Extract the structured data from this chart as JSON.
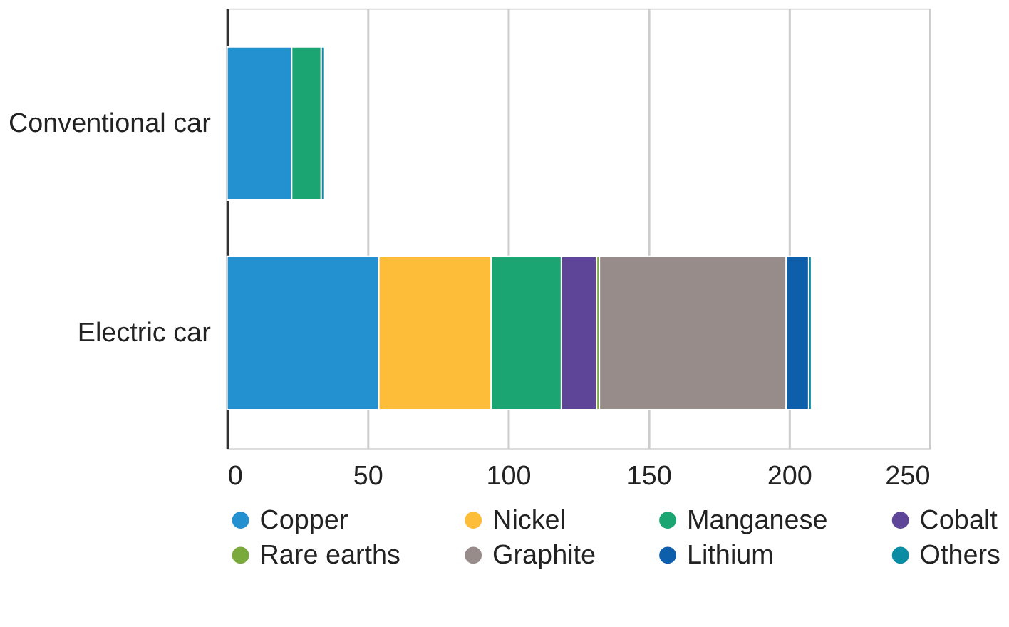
{
  "chart_data": {
    "type": "bar",
    "orientation": "horizontal",
    "stacked": true,
    "categories": [
      "Conventional car",
      "Electric car"
    ],
    "series": [
      {
        "name": "Copper",
        "color": "#2390d0",
        "values": [
          23,
          54
        ]
      },
      {
        "name": "Nickel",
        "color": "#fdbd38",
        "values": [
          null,
          40
        ]
      },
      {
        "name": "Manganese",
        "color": "#1ba572",
        "values": [
          10.5,
          25
        ]
      },
      {
        "name": "Cobalt",
        "color": "#5f4598",
        "values": [
          null,
          12.5
        ]
      },
      {
        "name": "Rare earths",
        "color": "#7aa93c",
        "values": [
          null,
          1
        ]
      },
      {
        "name": "Graphite",
        "color": "#988c8b",
        "values": [
          null,
          66.5
        ]
      },
      {
        "name": "Lithium",
        "color": "#0d5eab",
        "values": [
          null,
          8
        ]
      },
      {
        "name": "Others",
        "color": "#0a8ca3",
        "values": [
          1,
          1
        ]
      }
    ],
    "xlim": [
      0,
      250
    ],
    "xticks": [
      0,
      50,
      100,
      150,
      200,
      250
    ],
    "grid": "x",
    "legend": "bottom"
  }
}
